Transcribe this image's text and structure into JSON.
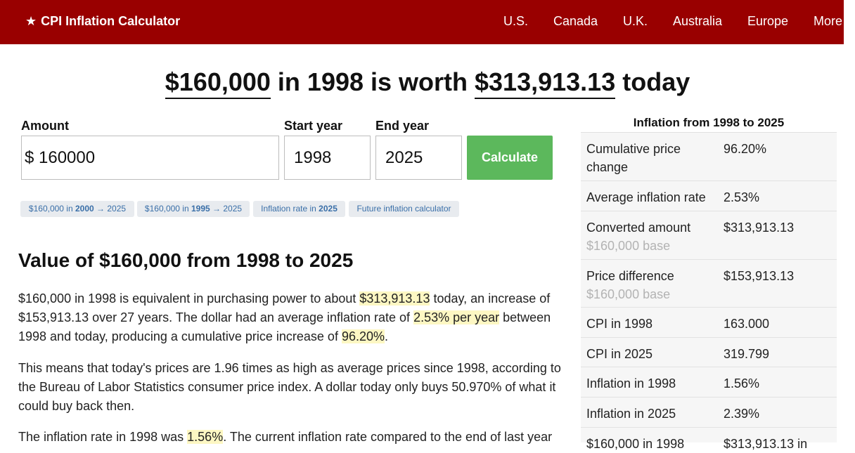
{
  "header": {
    "brand": "CPI Inflation Calculator",
    "brand_icon": "star-icon",
    "nav": [
      "U.S.",
      "Canada",
      "U.K.",
      "Australia",
      "Europe",
      "More"
    ]
  },
  "headline": {
    "amount": "$160,000",
    "middle": " in 1998 is worth ",
    "worth": "$313,913.13",
    "suffix": " today"
  },
  "form": {
    "amount_label": "Amount",
    "currency_symbol": "$",
    "amount_value": "160000",
    "start_label": "Start year",
    "start_value": "1998",
    "end_label": "End year",
    "end_value": "2025",
    "calculate_label": "Calculate"
  },
  "links": [
    {
      "pre": "$160,000 in ",
      "bold": "2000",
      "post": " → 2025"
    },
    {
      "pre": "$160,000 in ",
      "bold": "1995",
      "post": " → 2025"
    },
    {
      "pre": "Inflation rate in ",
      "bold": "2025",
      "post": ""
    },
    {
      "pre": "Future inflation calculator",
      "bold": "",
      "post": ""
    }
  ],
  "article": {
    "title": "Value of $160,000 from 1998 to 2025",
    "p1": {
      "a": "$160,000 in 1998 is equivalent in purchasing power to about ",
      "h1": "$313,913.13",
      "b": " today, an increase of $153,913.13 over 27 years. The dollar had an average inflation rate of ",
      "h2": "2.53% per year",
      "c": " between 1998 and today, producing a cumulative price increase of ",
      "h3": "96.20%",
      "d": "."
    },
    "p2": "This means that today's prices are 1.96 times as high as average prices since 1998, according to the Bureau of Labor Statistics consumer price index. A dollar today only buys 50.970% of what it could buy back then.",
    "p3": {
      "a": "The inflation rate in 1998 was ",
      "h1": "1.56%",
      "b": ". The current inflation rate compared to the end of last year"
    }
  },
  "sidebar": {
    "title": "Inflation from 1998 to 2025",
    "rows": [
      {
        "label": "Cumulative price change",
        "sub": "",
        "value": "96.20%"
      },
      {
        "label": "Average inflation rate",
        "sub": "",
        "value": "2.53%"
      },
      {
        "label": "Converted amount",
        "sub": "$160,000 base",
        "value": "$313,913.13"
      },
      {
        "label": "Price difference",
        "sub": "$160,000 base",
        "value": "$153,913.13"
      },
      {
        "label": "CPI in 1998",
        "sub": "",
        "value": "163.000"
      },
      {
        "label": "CPI in 2025",
        "sub": "",
        "value": "319.799"
      },
      {
        "label": "Inflation in 1998",
        "sub": "",
        "value": "1.56%"
      },
      {
        "label": "Inflation in 2025",
        "sub": "",
        "value": "2.39%"
      },
      {
        "label": "$160,000 in 1998",
        "sub": "",
        "value": "$313,913.13 in"
      }
    ]
  }
}
